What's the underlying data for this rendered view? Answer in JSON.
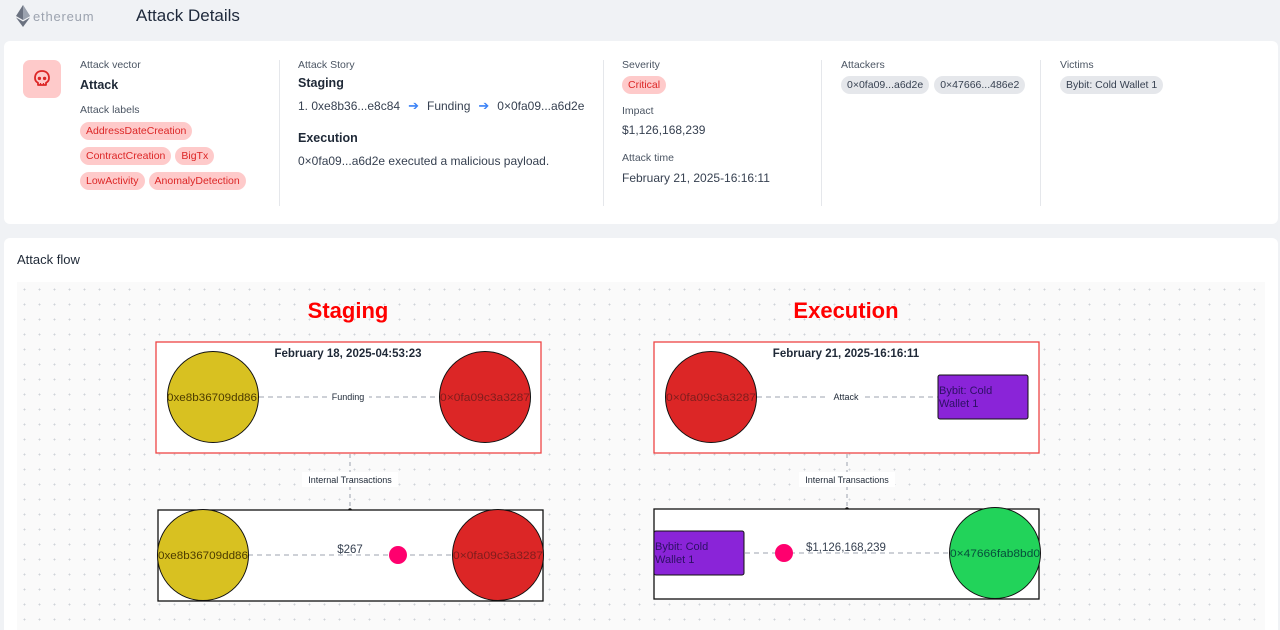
{
  "app": {
    "logo_word": "ethereum",
    "page_title": "Attack Details"
  },
  "attack_vector": {
    "label": "Attack vector",
    "value": "Attack",
    "labels_title": "Attack labels",
    "labels": [
      "AddressDateCreation",
      "ContractCreation",
      "BigTx",
      "LowActivity",
      "AnomalyDetection"
    ]
  },
  "attack_story": {
    "label": "Attack Story",
    "staging": {
      "title": "Staging",
      "from": "1. 0xe8b36...e8c84",
      "via": "Funding",
      "to": "0×0fa09...a6d2e"
    },
    "execution": {
      "title": "Execution",
      "text": "0×0fa09...a6d2e executed a malicious payload."
    }
  },
  "severity": {
    "label": "Severity",
    "value": "Critical"
  },
  "impact": {
    "label": "Impact",
    "value": "$1,126,168,239"
  },
  "attack_time": {
    "label": "Attack time",
    "value": "February 21, 2025-16:16:11"
  },
  "attackers": {
    "label": "Attackers",
    "items": [
      "0×0fa09...a6d2e",
      "0×47666...486e2"
    ]
  },
  "victims": {
    "label": "Victims",
    "items": [
      "Bybit: Cold Wallet 1"
    ]
  },
  "flow": {
    "title": "Attack flow",
    "staging": {
      "heading": "Staging",
      "date": "February 18, 2025-04:53:23",
      "node_a": "0xe8b36709dd86",
      "node_b": "0×0fa09c3a3287",
      "edge": "Funding",
      "internal": "Internal Transactions",
      "tx_from": "0xe8b36709dd86",
      "tx_to": "0×0fa09c3a3287",
      "amount": "$267"
    },
    "execution": {
      "heading": "Execution",
      "date": "February 21, 2025-16:16:11",
      "node_a": "0×0fa09c3a3287",
      "victim_line1": "Bybit: Cold",
      "victim_line2": "Wallet 1",
      "edge": "Attack",
      "internal": "Internal Transactions",
      "tx_from_line1": "Bybit: Cold",
      "tx_from_line2": "Wallet 1",
      "tx_to": "0×47666fab8bd0",
      "amount": "$1,126,168,239"
    }
  },
  "colors": {
    "danger": "#ff0000",
    "yellow_node": "#d8c121",
    "red_node": "#dc2626",
    "green_node": "#22d35a",
    "purple_node": "#8a24d8",
    "dot": "#ff006e"
  }
}
